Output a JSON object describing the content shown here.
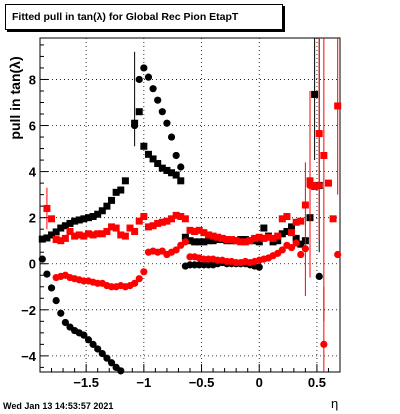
{
  "window": {
    "title": "Fitted pull in tan(λ) for Global Rec Pion EtapT",
    "timestamp": "Wed Jan 13 14:53:57 2021"
  },
  "chart_data": {
    "type": "scatter",
    "title": "Fitted pull in tan(λ) for Global Rec Pion EtapT",
    "xlabel": "η",
    "ylabel": "pull in tan(λ)",
    "xlim": [
      -1.9,
      0.7
    ],
    "ylim": [
      -4.7,
      9.8
    ],
    "xticks": [
      -1.5,
      -1,
      -0.5,
      0,
      0.5
    ],
    "xtick_labels": [
      "−1.5",
      "−1",
      "−0.5",
      "0",
      "0.5"
    ],
    "yticks": [
      -4,
      -2,
      0,
      2,
      4,
      6,
      8
    ],
    "ytick_labels": [
      "−4",
      "−2",
      "0",
      "2",
      "4",
      "6",
      "8"
    ],
    "grid": true,
    "colors": {
      "black": "#000000",
      "red": "#ff0000"
    },
    "series": [
      {
        "marker": "square",
        "color": "#000000",
        "points": [
          [
            -1.88,
            1.07
          ],
          [
            -1.84,
            1.12
          ],
          [
            -1.8,
            1.25
          ],
          [
            -1.76,
            1.38
          ],
          [
            -1.72,
            1.55
          ],
          [
            -1.68,
            1.65
          ],
          [
            -1.64,
            1.75
          ],
          [
            -1.6,
            1.85
          ],
          [
            -1.56,
            1.9
          ],
          [
            -1.52,
            1.95
          ],
          [
            -1.48,
            2.0
          ],
          [
            -1.44,
            2.05
          ],
          [
            -1.4,
            2.15
          ],
          [
            -1.36,
            2.3
          ],
          [
            -1.32,
            2.5
          ],
          [
            -1.28,
            2.75
          ],
          [
            -1.24,
            3.1
          ],
          [
            -1.2,
            3.2
          ],
          [
            -1.16,
            3.6
          ],
          [
            -1.08,
            6.1
          ],
          [
            -1.04,
            6.6
          ],
          [
            -1.0,
            5.1
          ],
          [
            -0.96,
            4.75
          ],
          [
            -0.92,
            4.55
          ],
          [
            -0.88,
            4.35
          ],
          [
            -0.84,
            4.15
          ],
          [
            -0.8,
            4.05
          ],
          [
            -0.76,
            3.95
          ],
          [
            -0.72,
            3.85
          ],
          [
            -0.68,
            3.6
          ],
          [
            -0.64,
            1.15
          ],
          [
            -0.6,
            1.0
          ],
          [
            -0.56,
            0.95
          ],
          [
            -0.52,
            0.95
          ],
          [
            -0.48,
            0.95
          ],
          [
            -0.44,
            1.0
          ],
          [
            -0.4,
            1.0
          ],
          [
            -0.36,
            1.05
          ],
          [
            -0.32,
            1.05
          ],
          [
            -0.28,
            1.0
          ],
          [
            -0.24,
            1.0
          ],
          [
            -0.2,
            1.0
          ],
          [
            -0.16,
            1.05
          ],
          [
            -0.12,
            1.05
          ],
          [
            -0.08,
            1.0
          ],
          [
            -0.04,
            1.0
          ],
          [
            0.0,
            0.95
          ],
          [
            0.04,
            1.55
          ],
          [
            0.08,
            1.2
          ],
          [
            0.12,
            0.95
          ],
          [
            0.16,
            1.0
          ],
          [
            0.2,
            1.3
          ],
          [
            0.24,
            1.4
          ],
          [
            0.28,
            1.6
          ],
          [
            0.32,
            1.1
          ],
          [
            0.36,
            0.85
          ],
          [
            0.4,
            1.0
          ],
          [
            0.44,
            2.0
          ],
          [
            0.48,
            7.35
          ],
          [
            0.52,
            3.4
          ]
        ],
        "errors": [
          [
            -1.08,
            9.2,
            5.1
          ],
          [
            0.48,
            9.8,
            4.5
          ],
          [
            0.52,
            9.8,
            0.5
          ]
        ]
      },
      {
        "marker": "circle",
        "color": "#000000",
        "points": [
          [
            -1.88,
            0.2
          ],
          [
            -1.84,
            -0.45
          ],
          [
            -1.8,
            -1.05
          ],
          [
            -1.76,
            -1.6
          ],
          [
            -1.72,
            -2.15
          ],
          [
            -1.68,
            -2.55
          ],
          [
            -1.64,
            -2.75
          ],
          [
            -1.6,
            -2.9
          ],
          [
            -1.56,
            -3.0
          ],
          [
            -1.52,
            -3.1
          ],
          [
            -1.48,
            -3.3
          ],
          [
            -1.44,
            -3.5
          ],
          [
            -1.4,
            -3.7
          ],
          [
            -1.36,
            -3.9
          ],
          [
            -1.32,
            -4.1
          ],
          [
            -1.28,
            -4.3
          ],
          [
            -1.24,
            -4.5
          ],
          [
            -1.2,
            -4.65
          ],
          [
            -1.08,
            6.0
          ],
          [
            -1.04,
            8.0
          ],
          [
            -1.0,
            8.5
          ],
          [
            -0.96,
            8.1
          ],
          [
            -0.92,
            7.6
          ],
          [
            -0.88,
            7.1
          ],
          [
            -0.84,
            6.6
          ],
          [
            -0.8,
            6.1
          ],
          [
            -0.76,
            5.5
          ],
          [
            -0.72,
            4.7
          ],
          [
            -0.68,
            4.2
          ],
          [
            -0.64,
            -0.1
          ],
          [
            -0.6,
            -0.05
          ],
          [
            -0.56,
            -0.05
          ],
          [
            -0.52,
            -0.05
          ],
          [
            -0.48,
            -0.05
          ],
          [
            -0.44,
            -0.05
          ],
          [
            -0.4,
            -0.05
          ],
          [
            -0.36,
            0.0
          ],
          [
            -0.32,
            0.05
          ],
          [
            -0.28,
            0.0
          ],
          [
            -0.24,
            0.0
          ],
          [
            -0.2,
            0.0
          ],
          [
            -0.16,
            0.0
          ],
          [
            -0.12,
            0.0
          ],
          [
            -0.08,
            -0.05
          ],
          [
            -0.04,
            -0.1
          ],
          [
            0.0,
            -0.15
          ],
          [
            0.52,
            -0.55
          ]
        ],
        "errors": []
      },
      {
        "marker": "square",
        "color": "#ff0000",
        "points": [
          [
            -1.84,
            2.4
          ],
          [
            -1.8,
            1.95
          ],
          [
            -1.76,
            1.05
          ],
          [
            -1.72,
            1.0
          ],
          [
            -1.68,
            1.1
          ],
          [
            -1.64,
            1.4
          ],
          [
            -1.6,
            1.2
          ],
          [
            -1.56,
            1.25
          ],
          [
            -1.52,
            1.2
          ],
          [
            -1.48,
            1.3
          ],
          [
            -1.44,
            1.25
          ],
          [
            -1.4,
            1.3
          ],
          [
            -1.36,
            1.3
          ],
          [
            -1.32,
            1.4
          ],
          [
            -1.28,
            1.6
          ],
          [
            -1.24,
            1.55
          ],
          [
            -1.2,
            1.25
          ],
          [
            -1.16,
            1.2
          ],
          [
            -1.12,
            1.55
          ],
          [
            -1.08,
            1.4
          ],
          [
            -1.04,
            1.85
          ],
          [
            -1.0,
            2.05
          ],
          [
            -0.96,
            1.6
          ],
          [
            -0.92,
            1.65
          ],
          [
            -0.88,
            1.75
          ],
          [
            -0.84,
            1.8
          ],
          [
            -0.8,
            1.85
          ],
          [
            -0.76,
            1.95
          ],
          [
            -0.72,
            2.1
          ],
          [
            -0.68,
            2.05
          ],
          [
            -0.64,
            1.95
          ],
          [
            -0.6,
            1.45
          ],
          [
            -0.56,
            1.4
          ],
          [
            -0.52,
            1.45
          ],
          [
            -0.48,
            1.35
          ],
          [
            -0.44,
            1.25
          ],
          [
            -0.4,
            1.2
          ],
          [
            -0.36,
            1.15
          ],
          [
            -0.32,
            1.1
          ],
          [
            -0.28,
            1.05
          ],
          [
            -0.24,
            1.05
          ],
          [
            -0.2,
            1.0
          ],
          [
            -0.16,
            0.95
          ],
          [
            -0.12,
            0.95
          ],
          [
            -0.08,
            1.0
          ],
          [
            -0.04,
            1.1
          ],
          [
            0.0,
            1.15
          ],
          [
            0.04,
            1.1
          ],
          [
            0.08,
            1.15
          ],
          [
            0.12,
            1.1
          ],
          [
            0.16,
            1.2
          ],
          [
            0.2,
            1.95
          ],
          [
            0.24,
            2.05
          ],
          [
            0.28,
            1.35
          ],
          [
            0.32,
            1.8
          ],
          [
            0.36,
            1.85
          ],
          [
            0.4,
            2.55
          ],
          [
            0.44,
            3.6
          ],
          [
            0.48,
            3.35
          ],
          [
            0.52,
            5.65
          ],
          [
            0.56,
            4.7
          ],
          [
            0.6,
            3.5
          ],
          [
            0.64,
            1.95
          ],
          [
            0.68,
            6.85
          ]
        ],
        "errors": [
          [
            -1.84,
            3.3,
            1.5
          ],
          [
            0.4,
            4.4,
            -1.4
          ],
          [
            0.44,
            7.5,
            -0.6
          ],
          [
            0.52,
            9.8,
            1.0
          ],
          [
            0.56,
            9.8,
            -2.5
          ],
          [
            0.68,
            9.8,
            3.0
          ]
        ]
      },
      {
        "marker": "circle",
        "color": "#ff0000",
        "points": [
          [
            -1.76,
            -0.6
          ],
          [
            -1.72,
            -0.55
          ],
          [
            -1.68,
            -0.5
          ],
          [
            -1.64,
            -0.6
          ],
          [
            -1.6,
            -0.65
          ],
          [
            -1.56,
            -0.7
          ],
          [
            -1.52,
            -0.75
          ],
          [
            -1.48,
            -0.75
          ],
          [
            -1.44,
            -0.8
          ],
          [
            -1.4,
            -0.85
          ],
          [
            -1.36,
            -0.85
          ],
          [
            -1.32,
            -0.95
          ],
          [
            -1.28,
            -1.0
          ],
          [
            -1.24,
            -1.0
          ],
          [
            -1.2,
            -0.95
          ],
          [
            -1.16,
            -1.0
          ],
          [
            -1.12,
            -0.95
          ],
          [
            -1.08,
            -0.85
          ],
          [
            -1.04,
            -0.65
          ],
          [
            -1.0,
            -0.35
          ],
          [
            -0.96,
            0.5
          ],
          [
            -0.92,
            0.55
          ],
          [
            -0.88,
            0.5
          ],
          [
            -0.84,
            0.55
          ],
          [
            -0.8,
            0.4
          ],
          [
            -0.76,
            0.5
          ],
          [
            -0.72,
            0.6
          ],
          [
            -0.68,
            0.8
          ],
          [
            -0.64,
            0.95
          ],
          [
            -0.6,
            0.3
          ],
          [
            -0.56,
            0.3
          ],
          [
            -0.52,
            0.25
          ],
          [
            -0.48,
            0.2
          ],
          [
            -0.44,
            0.2
          ],
          [
            -0.4,
            0.2
          ],
          [
            -0.36,
            0.15
          ],
          [
            -0.32,
            0.15
          ],
          [
            -0.28,
            0.1
          ],
          [
            -0.24,
            0.1
          ],
          [
            -0.2,
            0.05
          ],
          [
            -0.16,
            0.05
          ],
          [
            -0.12,
            0.1
          ],
          [
            -0.08,
            0.05
          ],
          [
            -0.04,
            0.1
          ],
          [
            0.0,
            0.15
          ],
          [
            0.04,
            0.2
          ],
          [
            0.08,
            0.25
          ],
          [
            0.12,
            0.35
          ],
          [
            0.16,
            0.45
          ],
          [
            0.2,
            0.6
          ],
          [
            0.24,
            0.8
          ],
          [
            0.28,
            0.7
          ],
          [
            0.32,
            0.9
          ],
          [
            0.36,
            0.4
          ],
          [
            0.4,
            0.65
          ],
          [
            0.44,
            3.4
          ],
          [
            0.48,
            3.4
          ],
          [
            0.52,
            3.4
          ],
          [
            0.56,
            -3.5
          ],
          [
            0.68,
            0.4
          ]
        ],
        "errors": [
          [
            0.44,
            6.0,
            0.5
          ],
          [
            0.56,
            -1.0,
            -4.7
          ]
        ]
      }
    ]
  }
}
